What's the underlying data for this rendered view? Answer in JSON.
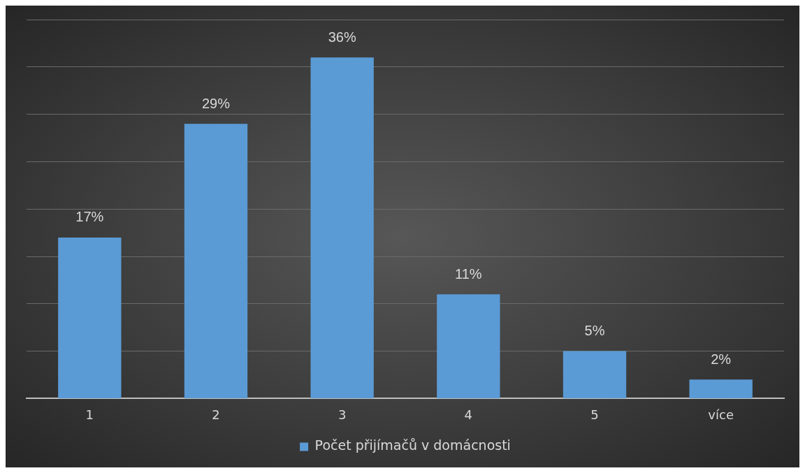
{
  "chart_data": {
    "type": "bar",
    "categories": [
      "1",
      "2",
      "3",
      "4",
      "5",
      "více"
    ],
    "series": [
      {
        "name": "Počet přijímačů v domácnosti",
        "color": "#5b9bd5",
        "values": [
          17,
          29,
          36,
          11,
          5,
          2
        ],
        "value_labels": [
          "17%",
          "29%",
          "36%",
          "11%",
          "5%",
          "2%"
        ]
      }
    ],
    "ylim": [
      0,
      40
    ],
    "yticks": [
      {
        "value": 0,
        "label": null
      },
      {
        "value": 5,
        "label": null
      },
      {
        "value": 10,
        "label": null
      },
      {
        "value": 15,
        "label": null
      },
      {
        "value": 20,
        "label": null
      },
      {
        "value": 25,
        "label": null
      },
      {
        "value": 30,
        "label": null
      },
      {
        "value": 35,
        "label": null
      },
      {
        "value": 40,
        "label": null
      }
    ],
    "grid": "y",
    "tick_labels": "x",
    "legend": "bottom"
  }
}
